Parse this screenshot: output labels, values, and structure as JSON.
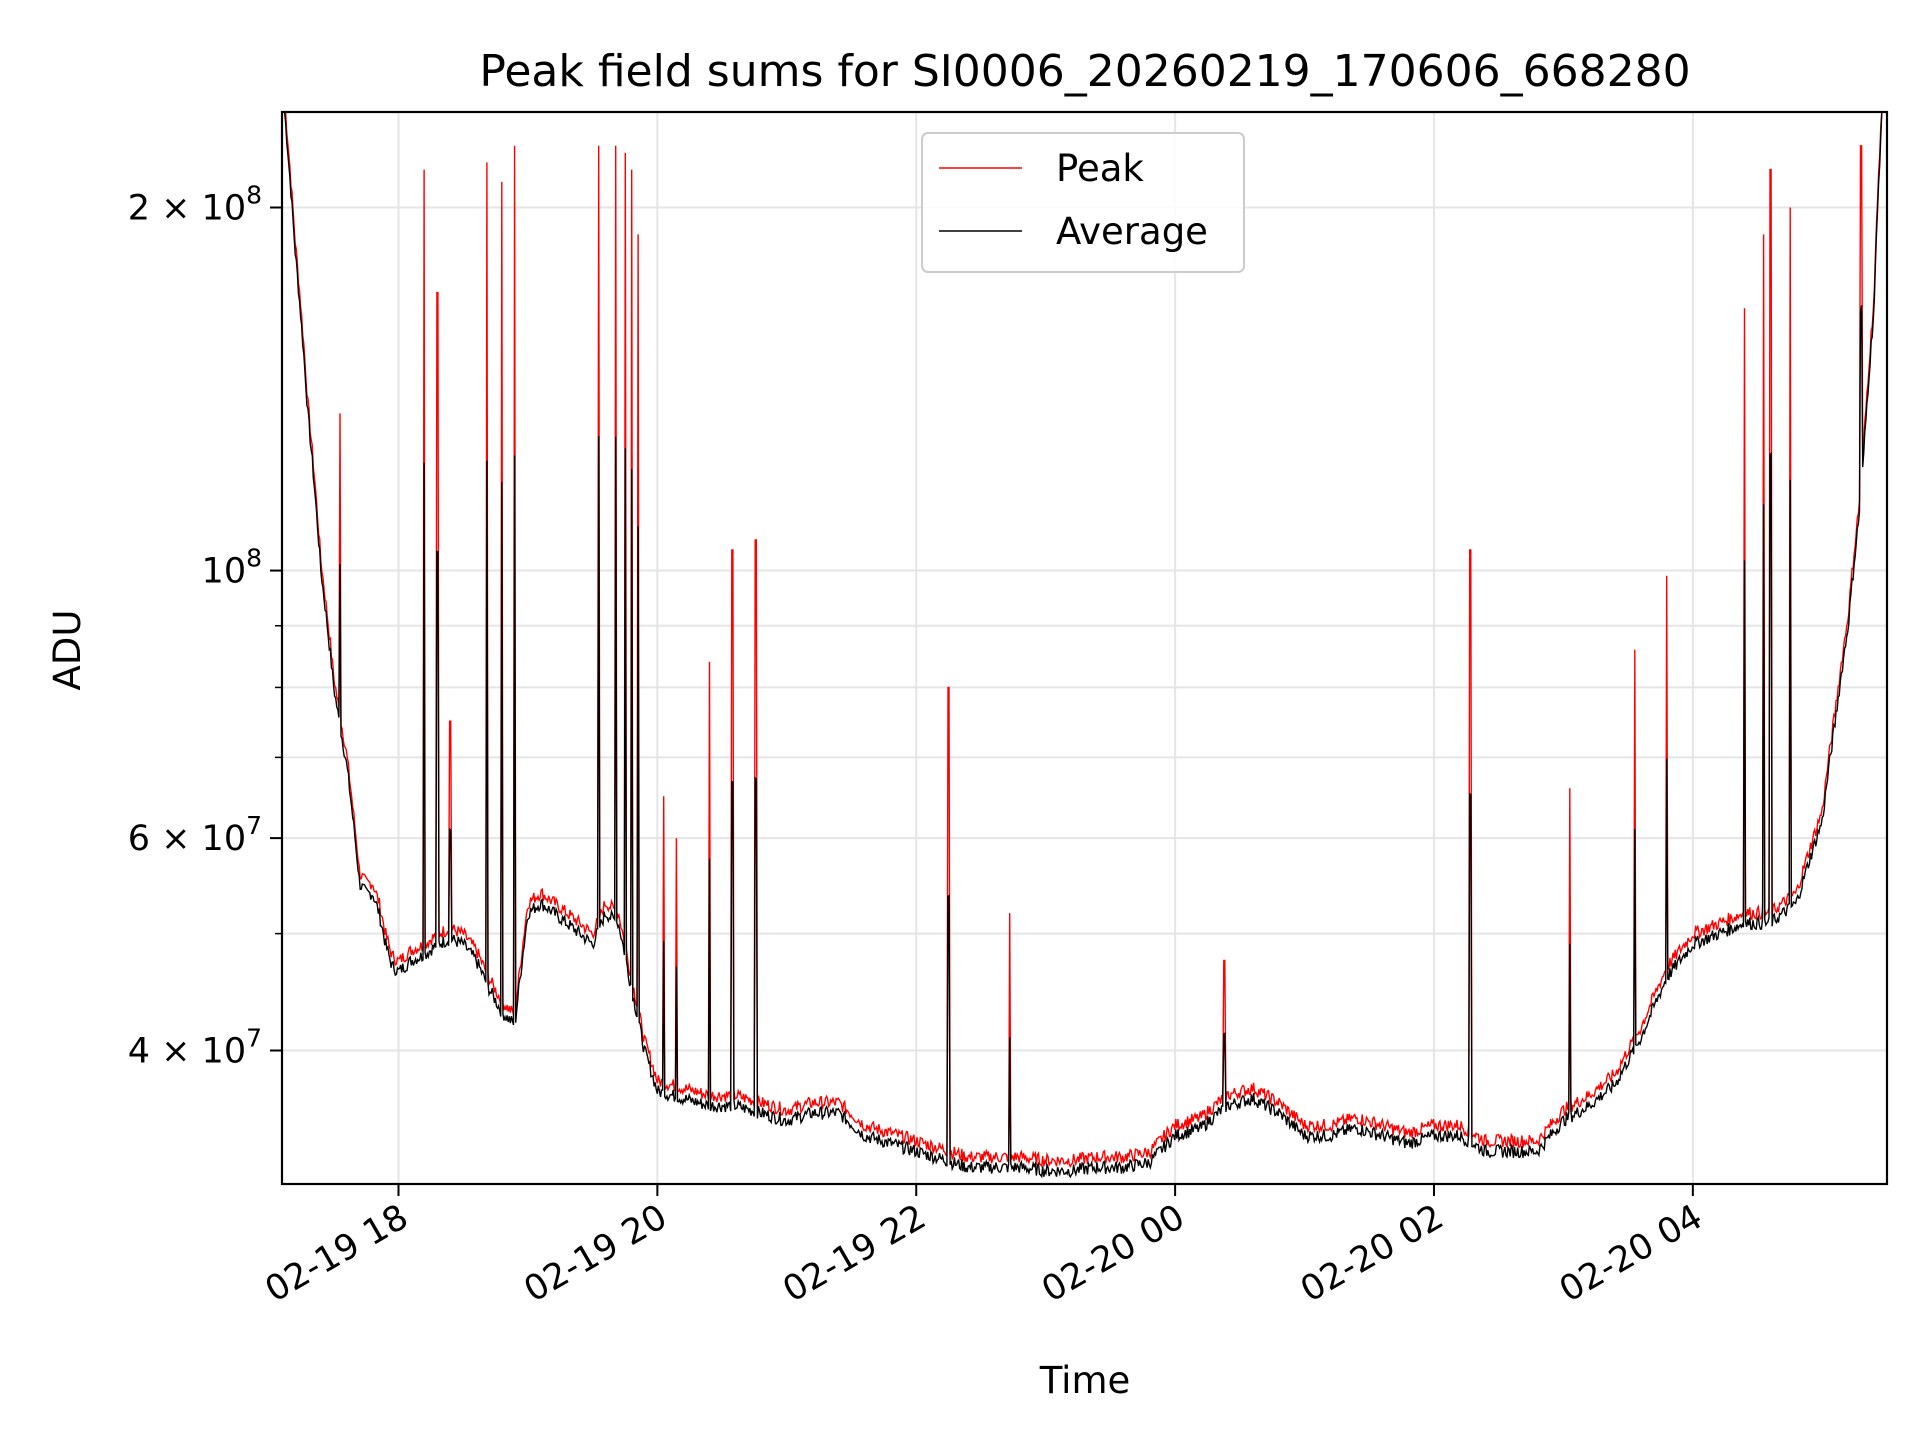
{
  "chart_data": {
    "type": "line",
    "title": "Peak field sums for SI0006_20260219_170606_668280",
    "xlabel": "Time",
    "ylabel": "ADU",
    "yscale": "log",
    "ylim": [
      31000000,
      240000000
    ],
    "xlim_hours": [
      -0.9,
      11.5
    ],
    "x_ticks": [
      {
        "hours": 0,
        "label": "02-19 18"
      },
      {
        "hours": 2,
        "label": "02-19 20"
      },
      {
        "hours": 4,
        "label": "02-19 22"
      },
      {
        "hours": 6,
        "label": "02-20 00"
      },
      {
        "hours": 8,
        "label": "02-20 02"
      },
      {
        "hours": 10,
        "label": "02-20 04"
      }
    ],
    "y_ticks_major": [
      {
        "value": 40000000,
        "label": "4 × 10",
        "exp": "7"
      },
      {
        "value": 60000000,
        "label": "6 × 10",
        "exp": "7"
      },
      {
        "value": 100000000,
        "label": "10",
        "exp": "8"
      },
      {
        "value": 200000000,
        "label": "2 × 10",
        "exp": "8"
      }
    ],
    "y_ticks_minor": [
      50000000,
      70000000,
      80000000,
      90000000
    ],
    "grid": true,
    "legend": {
      "position": "top-center",
      "entries": [
        {
          "name": "Peak",
          "color": "#ff0000"
        },
        {
          "name": "Average",
          "color": "#000000"
        }
      ]
    },
    "x_hours_note": "hours relative to 02-19 18:00",
    "baseline_points": [
      [
        -0.88,
        240
      ],
      [
        -0.8,
        185
      ],
      [
        -0.7,
        135
      ],
      [
        -0.6,
        100
      ],
      [
        -0.5,
        80
      ],
      [
        -0.45,
        74
      ],
      [
        -0.4,
        69
      ],
      [
        -0.35,
        62
      ],
      [
        -0.3,
        55
      ],
      [
        -0.25,
        54
      ],
      [
        -0.2,
        54
      ],
      [
        -0.15,
        52
      ],
      [
        -0.1,
        49
      ],
      [
        -0.05,
        47
      ],
      [
        0.0,
        46.5
      ],
      [
        0.1,
        47.5
      ],
      [
        0.2,
        48
      ],
      [
        0.3,
        49
      ],
      [
        0.4,
        49.5
      ],
      [
        0.5,
        49
      ],
      [
        0.6,
        47.5
      ],
      [
        0.7,
        45
      ],
      [
        0.8,
        43
      ],
      [
        0.9,
        42
      ],
      [
        1.0,
        52
      ],
      [
        1.1,
        53
      ],
      [
        1.2,
        52
      ],
      [
        1.3,
        51
      ],
      [
        1.4,
        50
      ],
      [
        1.5,
        49
      ],
      [
        1.6,
        52
      ],
      [
        1.7,
        51
      ],
      [
        1.8,
        45
      ],
      [
        1.9,
        40
      ],
      [
        2.0,
        37
      ],
      [
        2.2,
        36.5
      ],
      [
        2.4,
        36
      ],
      [
        2.6,
        36
      ],
      [
        2.8,
        35.5
      ],
      [
        3.0,
        35
      ],
      [
        3.2,
        35.5
      ],
      [
        3.4,
        35.5
      ],
      [
        3.6,
        34
      ],
      [
        3.8,
        33.5
      ],
      [
        4.0,
        33
      ],
      [
        4.2,
        32.5
      ],
      [
        4.4,
        32
      ],
      [
        4.6,
        32
      ],
      [
        4.8,
        32
      ],
      [
        5.0,
        31.8
      ],
      [
        5.2,
        31.8
      ],
      [
        5.4,
        32
      ],
      [
        5.6,
        32
      ],
      [
        5.8,
        32.3
      ],
      [
        6.0,
        34
      ],
      [
        6.2,
        34.5
      ],
      [
        6.4,
        36
      ],
      [
        6.6,
        36.5
      ],
      [
        6.8,
        35.5
      ],
      [
        7.0,
        34
      ],
      [
        7.2,
        34
      ],
      [
        7.4,
        34.5
      ],
      [
        7.6,
        34
      ],
      [
        7.8,
        33.5
      ],
      [
        8.0,
        34
      ],
      [
        8.2,
        34
      ],
      [
        8.4,
        33
      ],
      [
        8.6,
        33
      ],
      [
        8.8,
        33
      ],
      [
        9.0,
        35
      ],
      [
        9.2,
        36
      ],
      [
        9.4,
        37.5
      ],
      [
        9.6,
        41
      ],
      [
        9.8,
        46
      ],
      [
        10.0,
        49
      ],
      [
        10.2,
        50
      ],
      [
        10.4,
        51
      ],
      [
        10.6,
        51
      ],
      [
        10.8,
        53
      ],
      [
        11.0,
        62
      ],
      [
        11.1,
        75
      ],
      [
        11.2,
        90
      ],
      [
        11.3,
        115
      ],
      [
        11.4,
        165
      ],
      [
        11.46,
        240
      ]
    ],
    "spikes": [
      [
        -0.45,
        135
      ],
      [
        0.2,
        215
      ],
      [
        0.3,
        170
      ],
      [
        0.4,
        75
      ],
      [
        0.68,
        218
      ],
      [
        0.8,
        210
      ],
      [
        0.9,
        225
      ],
      [
        1.55,
        225
      ],
      [
        1.68,
        225
      ],
      [
        1.75,
        222
      ],
      [
        1.8,
        215
      ],
      [
        1.85,
        190
      ],
      [
        2.05,
        65
      ],
      [
        2.15,
        60
      ],
      [
        2.4,
        84
      ],
      [
        2.58,
        104
      ],
      [
        2.76,
        106
      ],
      [
        4.25,
        80
      ],
      [
        4.72,
        52
      ],
      [
        6.38,
        47.5
      ],
      [
        8.28,
        104
      ],
      [
        9.05,
        66
      ],
      [
        9.55,
        86
      ],
      [
        9.8,
        99
      ],
      [
        10.4,
        165
      ],
      [
        10.55,
        190
      ],
      [
        10.6,
        215
      ],
      [
        10.75,
        200
      ],
      [
        11.3,
        225
      ]
    ]
  }
}
